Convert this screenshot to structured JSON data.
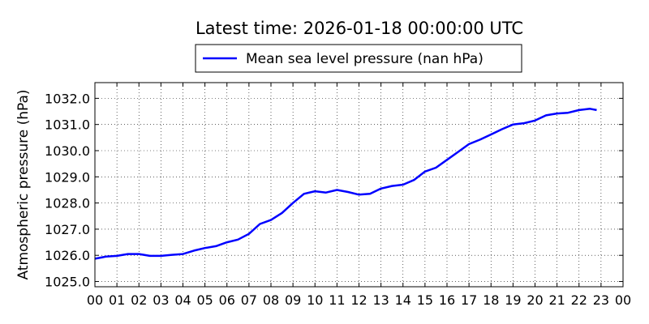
{
  "chart_data": {
    "type": "line",
    "title": "Latest time: 2026-01-18 00:00:00 UTC",
    "xlabel": "",
    "ylabel": "Atmospheric pressure (hPa)",
    "xlim": [
      0,
      24
    ],
    "ylim": [
      1024.8,
      1032.6
    ],
    "x_ticks": [
      0,
      1,
      2,
      3,
      4,
      5,
      6,
      7,
      8,
      9,
      10,
      11,
      12,
      13,
      14,
      15,
      16,
      17,
      18,
      19,
      20,
      21,
      22,
      23,
      24
    ],
    "x_tick_labels": [
      "00",
      "01",
      "02",
      "03",
      "04",
      "05",
      "06",
      "07",
      "08",
      "09",
      "10",
      "11",
      "12",
      "13",
      "14",
      "15",
      "16",
      "17",
      "18",
      "19",
      "20",
      "21",
      "22",
      "23",
      "00"
    ],
    "y_ticks": [
      1025.0,
      1026.0,
      1027.0,
      1028.0,
      1029.0,
      1030.0,
      1031.0,
      1032.0
    ],
    "y_tick_labels": [
      "1025.0",
      "1026.0",
      "1027.0",
      "1028.0",
      "1029.0",
      "1030.0",
      "1031.0",
      "1032.0"
    ],
    "grid": true,
    "legend_position": "top-center",
    "colors": {
      "series": "#0000ff",
      "grid": "#000000",
      "axes": "#000000"
    },
    "series": [
      {
        "name": "Mean sea level pressure (nan hPa)",
        "x": [
          0,
          0.5,
          1,
          1.5,
          2,
          2.5,
          3,
          3.5,
          4,
          4.5,
          5,
          5.5,
          6,
          6.5,
          7,
          7.5,
          8,
          8.5,
          9,
          9.5,
          10,
          10.5,
          11,
          11.5,
          12,
          12.5,
          13,
          13.5,
          14,
          14.5,
          15,
          15.5,
          16,
          16.5,
          17,
          17.5,
          18,
          18.5,
          19,
          19.5,
          20,
          20.5,
          21,
          21.5,
          22,
          22.5,
          22.8
        ],
        "y": [
          1025.87,
          1025.95,
          1025.98,
          1026.05,
          1026.05,
          1025.98,
          1025.98,
          1026.02,
          1026.05,
          1026.18,
          1026.28,
          1026.35,
          1026.5,
          1026.6,
          1026.82,
          1027.2,
          1027.35,
          1027.62,
          1028.0,
          1028.35,
          1028.45,
          1028.4,
          1028.5,
          1028.42,
          1028.32,
          1028.35,
          1028.55,
          1028.65,
          1028.7,
          1028.88,
          1029.2,
          1029.35,
          1029.65,
          1029.95,
          1030.25,
          1030.42,
          1030.62,
          1030.82,
          1031.0,
          1031.05,
          1031.15,
          1031.35,
          1031.42,
          1031.45,
          1031.55,
          1031.6,
          1031.55
        ]
      }
    ]
  }
}
